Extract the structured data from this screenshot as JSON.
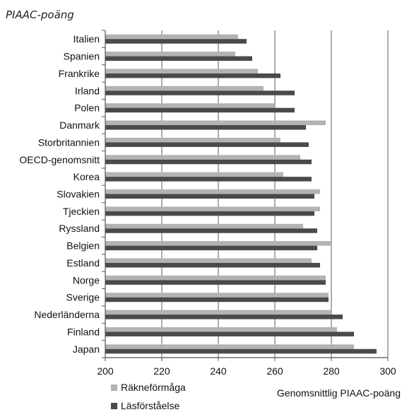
{
  "chart_data": {
    "type": "bar",
    "orientation": "horizontal",
    "title": "PIAAC-poäng",
    "xlabel": "Genomsnittlig PIAAC-poäng",
    "ylabel": "",
    "xlim": [
      200,
      300
    ],
    "xticks": [
      200,
      220,
      240,
      260,
      280,
      300
    ],
    "grid": true,
    "legend_position": "bottom-left",
    "categories": [
      "Italien",
      "Spanien",
      "Frankrike",
      "Irland",
      "Polen",
      "Danmark",
      "Storbritannien",
      "OECD-genomsnitt",
      "Korea",
      "Slovakien",
      "Tjeckien",
      "Ryssland",
      "Belgien",
      "Estland",
      "Norge",
      "Sverige",
      "Nederländerna",
      "Finland",
      "Japan"
    ],
    "series": [
      {
        "name": "Räkneförmåga",
        "color": "#b3b3b3",
        "values": [
          247,
          246,
          254,
          256,
          260,
          278,
          262,
          269,
          263,
          276,
          276,
          270,
          280,
          273,
          278,
          279,
          280,
          282,
          288
        ]
      },
      {
        "name": "Läsförståelse",
        "color": "#4a4a4a",
        "values": [
          250,
          252,
          262,
          267,
          267,
          271,
          272,
          273,
          273,
          274,
          274,
          275,
          275,
          276,
          278,
          279,
          284,
          288,
          296
        ]
      }
    ]
  }
}
